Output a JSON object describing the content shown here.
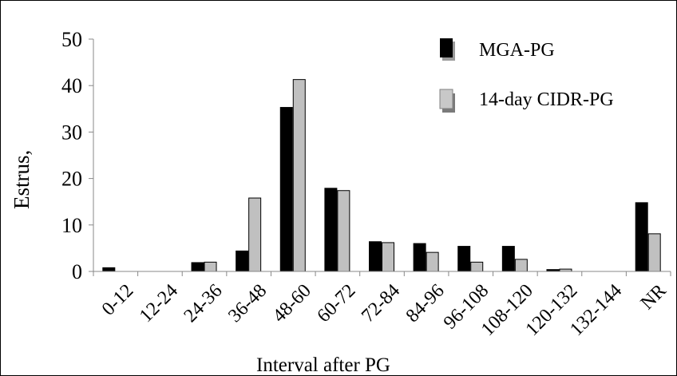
{
  "chart_data": {
    "type": "bar",
    "categories": [
      "0-12",
      "12-24",
      "24-36",
      "36-48",
      "48-60",
      "60-72",
      "72-84",
      "84-96",
      "96-108",
      "108-120",
      "120-132",
      "132-144",
      "NR"
    ],
    "series": [
      {
        "name": "MGA-PG",
        "values": [
          0.8,
          0,
          1.9,
          4.4,
          35.3,
          17.9,
          6.4,
          6.0,
          5.4,
          5.4,
          0.4,
          0,
          14.8
        ]
      },
      {
        "name": "14-day CIDR-PG",
        "values": [
          0,
          0,
          2.0,
          15.8,
          41.3,
          17.4,
          6.2,
          4.1,
          2.0,
          2.6,
          0.5,
          0,
          8.1
        ]
      }
    ],
    "ylim": [
      0,
      50
    ],
    "yticks": [
      0,
      10,
      20,
      30,
      40,
      50
    ],
    "ylabel": "Estrus,",
    "xlabel": "Interval after PG",
    "legend_position": "top-right",
    "grid": false,
    "colors": {
      "MGA-PG": "#000000",
      "14-day CIDR-PG": "#c0c0c0"
    }
  }
}
